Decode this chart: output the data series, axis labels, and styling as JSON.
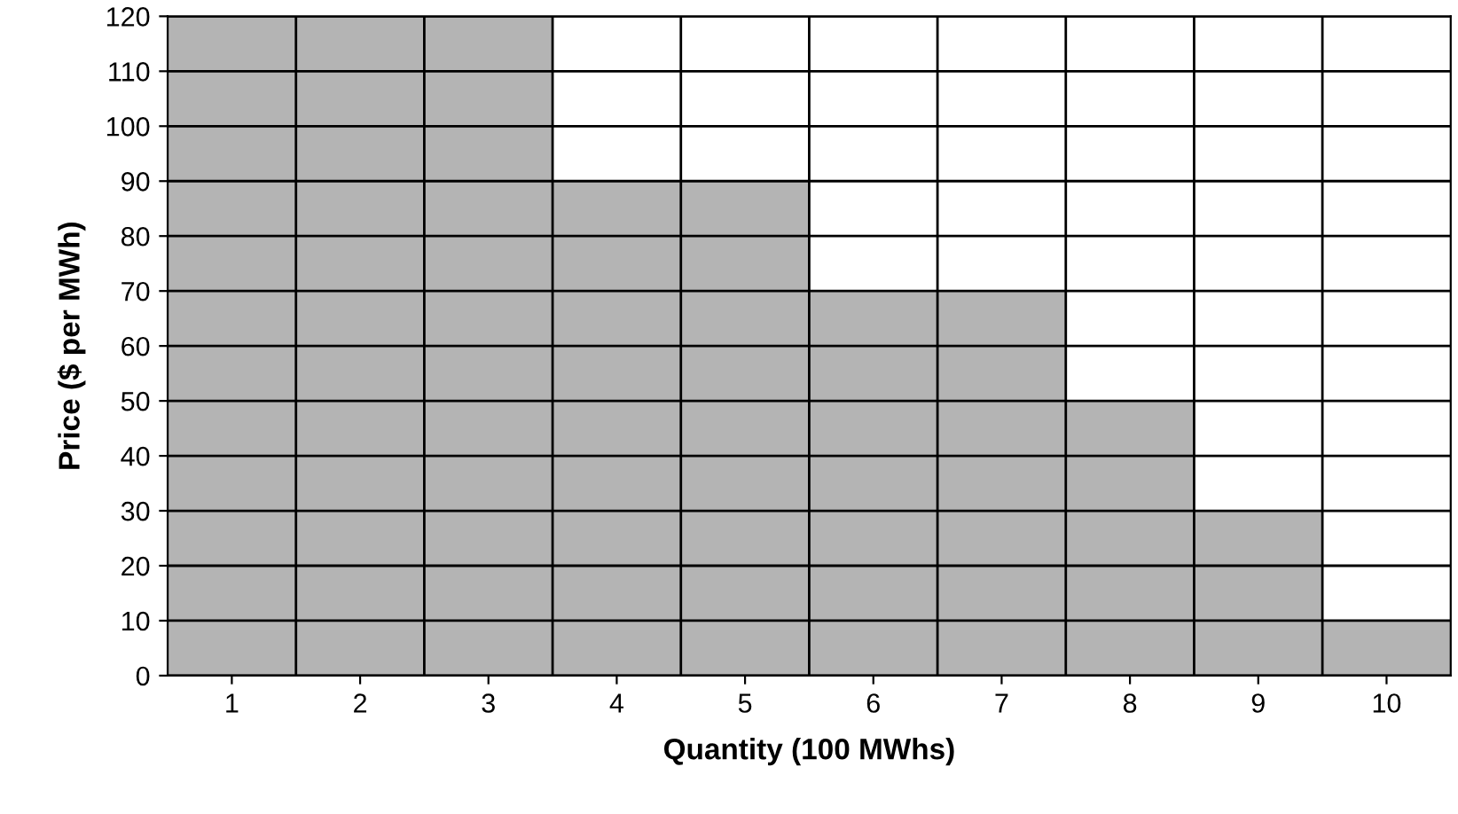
{
  "chart_data": {
    "type": "bar",
    "xlabel": "Quantity (100 MWhs)",
    "ylabel": "Price ($ per MWh)",
    "categories": [
      "1",
      "2",
      "3",
      "4",
      "5",
      "6",
      "7",
      "8",
      "9",
      "10"
    ],
    "values": [
      120,
      120,
      120,
      90,
      90,
      70,
      70,
      50,
      30,
      10
    ],
    "color": "#b4b4b4",
    "ylim": [
      0,
      120
    ],
    "yticks": [
      0,
      10,
      20,
      30,
      40,
      50,
      60,
      70,
      80,
      90,
      100,
      110,
      120
    ],
    "grid": true
  }
}
